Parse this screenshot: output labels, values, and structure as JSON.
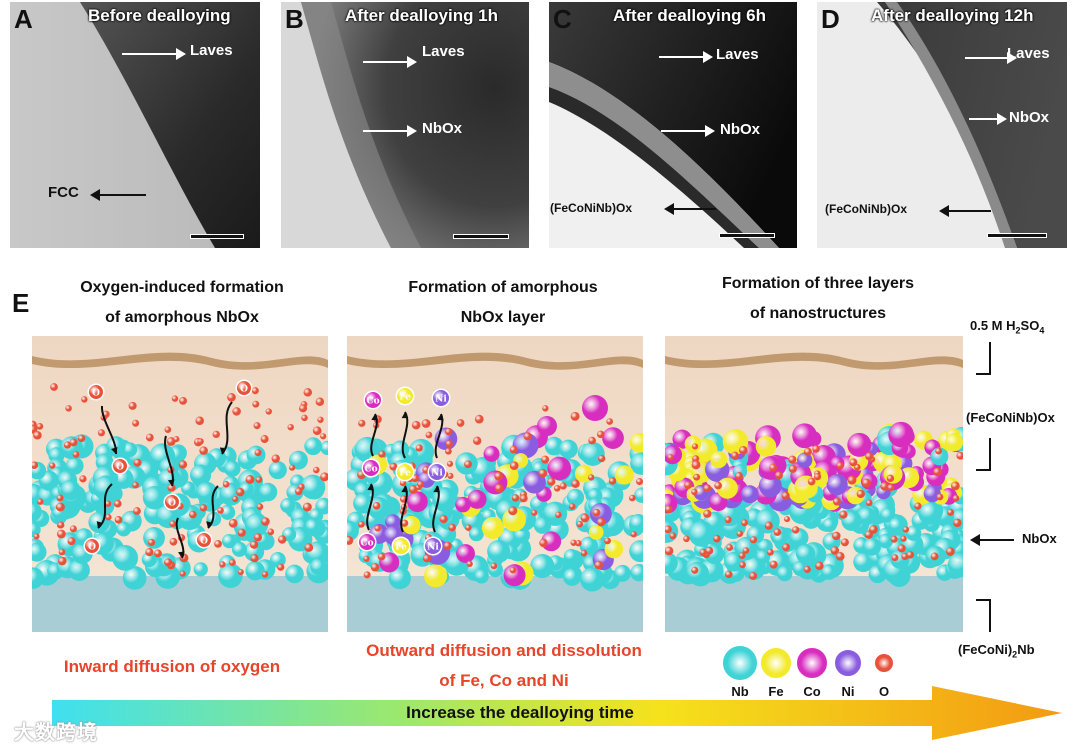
{
  "panels": {
    "A": {
      "label": "A",
      "title": "Before dealloying",
      "annotations": [
        "Laves",
        "FCC"
      ]
    },
    "B": {
      "label": "B",
      "title": "After dealloying 1h",
      "annotations": [
        "Laves",
        "NbOx"
      ]
    },
    "C": {
      "label": "C",
      "title": "After dealloying 6h",
      "annotations": [
        "Laves",
        "NbOx",
        "(FeCoNiNb)Ox"
      ]
    },
    "D": {
      "label": "D",
      "title": "After dealloying 12h",
      "annotations": [
        "Laves",
        "NbOx",
        "(FeCoNiNb)Ox"
      ]
    }
  },
  "schematic": {
    "label": "E",
    "stages": [
      {
        "title_line1": "Oxygen-induced formation",
        "title_line2": "of amorphous NbOx",
        "caption_line1": "Inward diffusion of oxygen",
        "caption_line2": ""
      },
      {
        "title_line1": "Formation of amorphous",
        "title_line2": "NbOx layer",
        "caption_line1": "Outward diffusion and dissolution",
        "caption_line2": "of Fe, Co and Ni"
      },
      {
        "title_line1": "Formation of three layers",
        "title_line2": "of nanostructures",
        "caption_line1": "",
        "caption_line2": ""
      }
    ],
    "side_labels": {
      "solution": "0.5 M H2SO4",
      "outer_layer": "(FeCoNiNb)Ox",
      "middle_layer": "NbOx",
      "substrate": "(FeCoNi)2Nb"
    },
    "ball_labels": [
      "O",
      "Co",
      "Fe",
      "Ni"
    ],
    "legend": [
      {
        "label": "Nb",
        "color": "#3fd3d6"
      },
      {
        "label": "Fe",
        "color": "#f2ea2a"
      },
      {
        "label": "Co",
        "color": "#d82ec0"
      },
      {
        "label": "Ni",
        "color": "#8a5ce0"
      },
      {
        "label": "O",
        "color": "#e8523a"
      }
    ],
    "time_arrow": "Increase the dealloying time"
  },
  "watermark": "大数跨境"
}
